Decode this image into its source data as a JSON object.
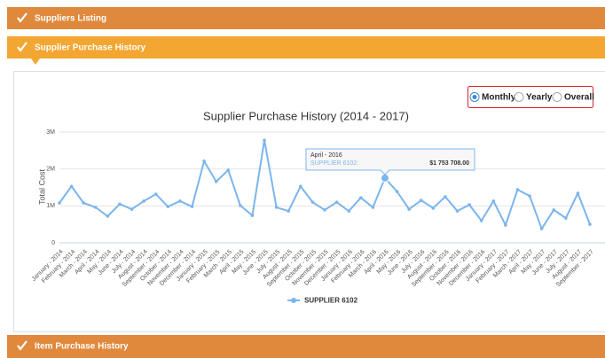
{
  "panels": [
    {
      "title": "Suppliers Listing"
    },
    {
      "title": "Supplier Purchase History"
    },
    {
      "title": "Item Purchase History"
    }
  ],
  "period_options": [
    {
      "label": "Monthly",
      "checked": true
    },
    {
      "label": "Yearly",
      "checked": false
    },
    {
      "label": "Overall",
      "checked": false
    }
  ],
  "chart_data": {
    "type": "line",
    "title": "Supplier Purchase History (2014 - 2017)",
    "y_label": "Total Cost",
    "categories": [
      "January - 2014",
      "February - 2014",
      "March - 2014",
      "April - 2014",
      "May - 2014",
      "June - 2014",
      "July - 2014",
      "August - 2014",
      "September - 2014",
      "October - 2014",
      "November - 2014",
      "December - 2014",
      "January - 2015",
      "February - 2015",
      "March - 2015",
      "April - 2015",
      "May - 2015",
      "June - 2015",
      "July - 2015",
      "August - 2015",
      "September - 2015",
      "October - 2015",
      "November - 2015",
      "December - 2015",
      "January - 2016",
      "February - 2016",
      "March - 2016",
      "April - 2016",
      "May - 2016",
      "June - 2016",
      "July - 2016",
      "August - 2016",
      "September - 2016",
      "October - 2016",
      "November - 2016",
      "December - 2016",
      "January - 2017",
      "February - 2017",
      "March - 2017",
      "April - 2017",
      "May - 2017",
      "June - 2017",
      "July - 2017",
      "August - 2017",
      "September - 2017"
    ],
    "series": [
      {
        "name": "SUPPLIER 6102",
        "color": "#7cb5ec",
        "values": [
          1080000,
          1530000,
          1080000,
          960000,
          720000,
          1050000,
          910000,
          1130000,
          1320000,
          980000,
          1130000,
          980000,
          2210000,
          1660000,
          1970000,
          1010000,
          740000,
          2780000,
          960000,
          860000,
          1530000,
          1100000,
          890000,
          1100000,
          860000,
          1220000,
          960000,
          1753708,
          1390000,
          910000,
          1150000,
          940000,
          1250000,
          860000,
          1030000,
          600000,
          1130000,
          480000,
          1440000,
          1270000,
          380000,
          890000,
          670000,
          1340000,
          500000
        ]
      }
    ],
    "tooltip": {
      "index": 27,
      "series_label": "SUPPLIER 6102:",
      "value_label": "$1 753 708.00"
    },
    "ylim": [
      0,
      3000000
    ],
    "yticks": [
      0,
      {
        "value": 1000000,
        "label": "1M"
      },
      {
        "value": 2000000,
        "label": "2M"
      },
      {
        "value": 3000000,
        "label": "3M"
      }
    ],
    "grid": true
  }
}
